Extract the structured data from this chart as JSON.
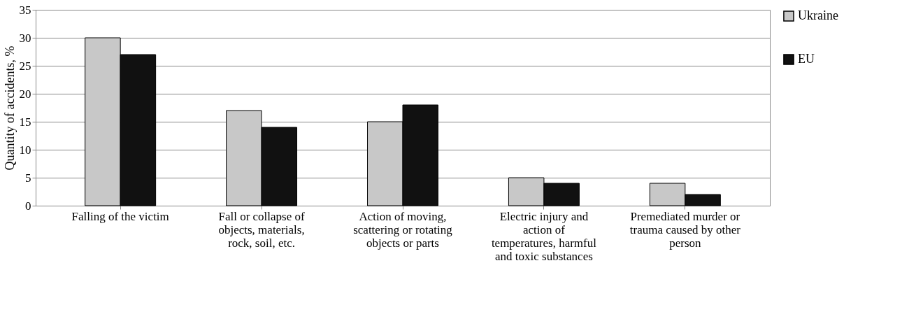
{
  "chart_data": {
    "type": "bar",
    "ylabel": "Quantity of accidents, %",
    "categories": [
      "Falling of the victim",
      "Fall or collapse of objects, materials, rock, soil, etc.",
      "Action of moving, scattering or rotating objects or parts",
      "Electric injury and action of temperatures, harmful and toxic substances",
      "Premediated murder or trauma caused by other person"
    ],
    "series": [
      {
        "name": "Ukraine",
        "color": "#c8c8c8",
        "values": [
          30,
          17,
          15,
          5,
          4
        ]
      },
      {
        "name": "EU",
        "color": "#111111",
        "values": [
          27,
          14,
          18,
          4,
          2
        ]
      }
    ],
    "ylim": [
      0,
      35
    ],
    "yticks": [
      0,
      5,
      10,
      15,
      20,
      25,
      30,
      35
    ],
    "grid": "y",
    "legend": "right"
  }
}
